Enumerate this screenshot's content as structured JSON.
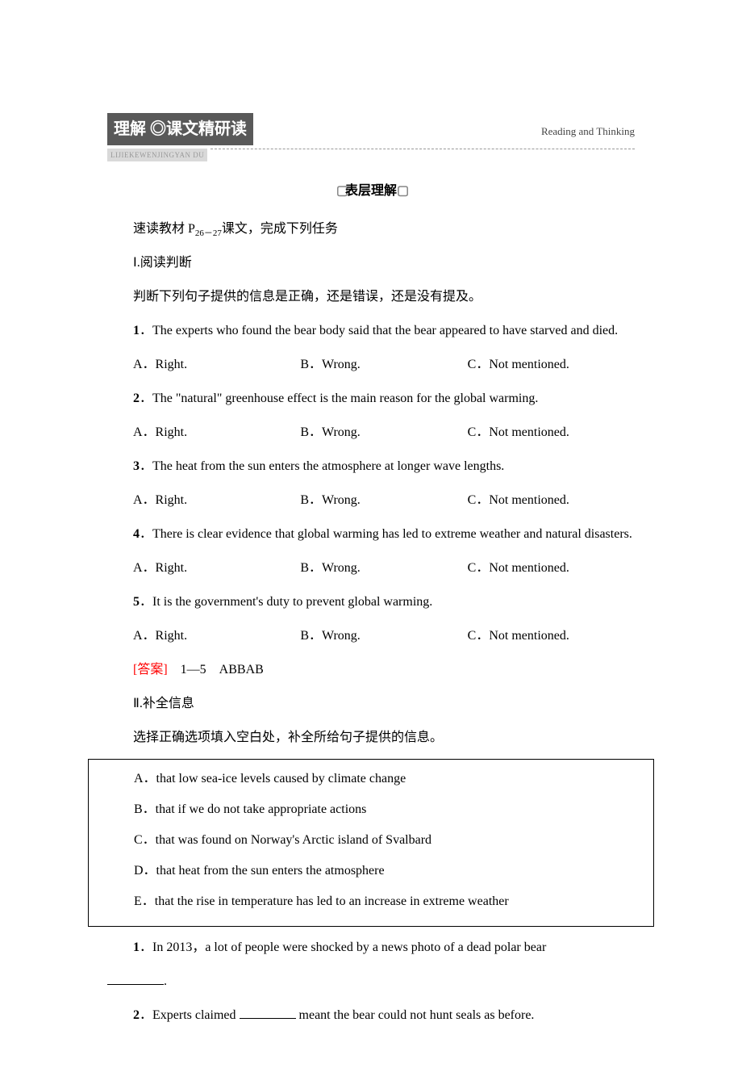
{
  "header": {
    "badge_part1": "理解",
    "badge_sep": " ◎",
    "badge_part2": "课文精研读",
    "pinyin": "LIJIEKEWENJINGYAN DU",
    "right_text": "Reading and Thinking"
  },
  "section_title": "表层理解",
  "intro": {
    "line1_a": "速读教材 P",
    "line1_sub": "26－27",
    "line1_b": "课文，完成下列任务",
    "part1_title": "Ⅰ.阅读判断",
    "part1_desc": "判断下列句子提供的信息是正确，还是错误，还是没有提及。"
  },
  "questions1": [
    {
      "num": "1",
      "text": "．The experts who found the bear body said that the bear appeared to have starved and died.",
      "opts": [
        "A．Right.",
        "B．Wrong.",
        "C．Not mentioned."
      ]
    },
    {
      "num": "2",
      "text": "．The \"natural\" greenhouse effect is the main reason for the global warming.",
      "opts": [
        "A．Right.",
        "B．Wrong.",
        "C．Not mentioned."
      ]
    },
    {
      "num": "3",
      "text": "．The heat from the sun enters the atmosphere at longer wave lengths.",
      "opts": [
        "A．Right.",
        "B．Wrong.",
        "C．Not mentioned."
      ]
    },
    {
      "num": "4",
      "text": "．There is clear evidence that global warming has led to extreme weather and natural disasters.",
      "opts": [
        "A．Right.",
        "B．Wrong.",
        "C．Not mentioned."
      ]
    },
    {
      "num": "5",
      "text": "．It is the government's duty to prevent global warming.",
      "opts": [
        "A．Right.",
        "B．Wrong.",
        "C．Not mentioned."
      ]
    }
  ],
  "answer1": {
    "label": "[答案]",
    "text": "　1—5　ABBAB"
  },
  "part2": {
    "title": "Ⅱ.补全信息",
    "desc": "选择正确选项填入空白处，补全所给句子提供的信息。"
  },
  "box_options": [
    "A．that low sea-ice levels caused by climate change",
    "B．that if we do not take appropriate actions",
    "C．that was found on Norway's Arctic island of Svalbard",
    "D．that heat from the sun enters the atmosphere",
    "E．that the rise in temperature has led to an increase in extreme weather"
  ],
  "questions2": [
    {
      "num": "1",
      "text_a": "．In 2013，a lot of people were shocked by a news photo of a dead polar bear ",
      "text_b": "."
    },
    {
      "num": "2",
      "text_a": "．Experts claimed ",
      "text_b": " meant the bear could not hunt seals as before."
    }
  ]
}
